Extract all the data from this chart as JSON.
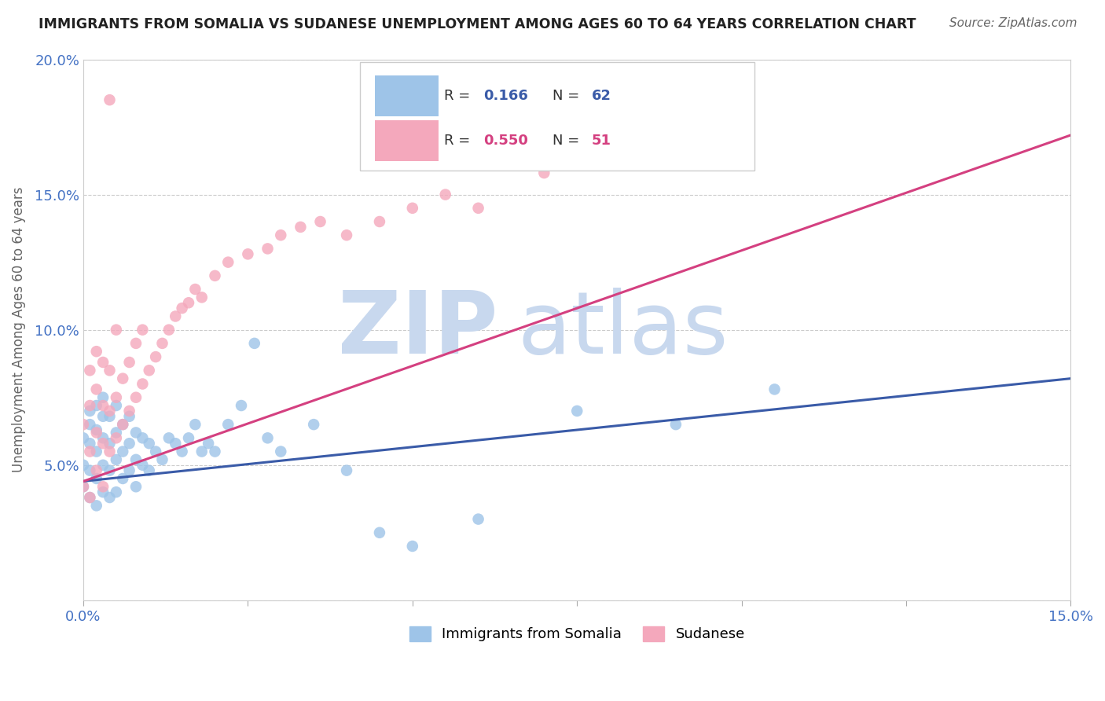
{
  "title": "IMMIGRANTS FROM SOMALIA VS SUDANESE UNEMPLOYMENT AMONG AGES 60 TO 64 YEARS CORRELATION CHART",
  "source": "Source: ZipAtlas.com",
  "ylabel": "Unemployment Among Ages 60 to 64 years",
  "xlim": [
    0.0,
    0.15
  ],
  "ylim": [
    0.0,
    0.2
  ],
  "somalia_R": 0.166,
  "somalia_N": 62,
  "sudanese_R": 0.55,
  "sudanese_N": 51,
  "somalia_color": "#9ec4e8",
  "sudanese_color": "#f4a8bc",
  "somalia_line_color": "#3a5ba8",
  "sudanese_line_color": "#d44080",
  "watermark_zip": "ZIP",
  "watermark_atlas": "atlas",
  "watermark_color": "#c8d8ee",
  "background_color": "#ffffff",
  "somalia_line_x0": 0.0,
  "somalia_line_y0": 0.044,
  "somalia_line_x1": 0.15,
  "somalia_line_y1": 0.082,
  "sudanese_line_x0": 0.0,
  "sudanese_line_y0": 0.044,
  "sudanese_line_x1": 0.15,
  "sudanese_line_y1": 0.172
}
